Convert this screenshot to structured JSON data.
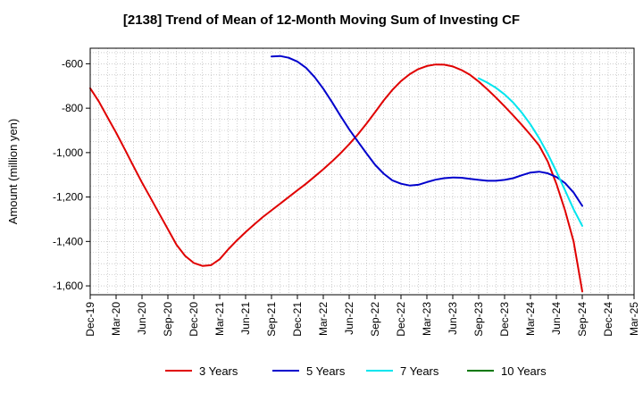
{
  "chart_data": {
    "type": "line",
    "title": "[2138]  Trend of Mean of 12-Month Moving Sum of Investing CF",
    "xlabel": "",
    "ylabel": "Amount (million yen)",
    "ylim": [
      -1640,
      -530
    ],
    "y_ticks": [
      -600,
      -800,
      -1000,
      -1200,
      -1400,
      -1600
    ],
    "y_tick_labels": [
      "-600",
      "-800",
      "-1,000",
      "-1,200",
      "-1,400",
      "-1,600"
    ],
    "x_tick_labels": [
      "Dec-19",
      "Mar-20",
      "Jun-20",
      "Sep-20",
      "Dec-20",
      "Mar-21",
      "Jun-21",
      "Sep-21",
      "Dec-21",
      "Mar-22",
      "Jun-22",
      "Sep-22",
      "Dec-22",
      "Mar-23",
      "Jun-23",
      "Sep-23",
      "Dec-23",
      "Mar-24",
      "Jun-24",
      "Sep-24",
      "Dec-24",
      "Mar-25"
    ],
    "grid": true,
    "legend_position": "bottom",
    "series": [
      {
        "name": "3 Years",
        "color": "#e00000",
        "points": [
          [
            "Dec-19",
            -710
          ],
          [
            "Jan-20",
            -770
          ],
          [
            "Feb-20",
            -840
          ],
          [
            "Mar-20",
            -910
          ],
          [
            "Apr-20",
            -985
          ],
          [
            "May-20",
            -1060
          ],
          [
            "Jun-20",
            -1135
          ],
          [
            "Jul-20",
            -1205
          ],
          [
            "Aug-20",
            -1275
          ],
          [
            "Sep-20",
            -1345
          ],
          [
            "Oct-20",
            -1415
          ],
          [
            "Nov-20",
            -1465
          ],
          [
            "Dec-20",
            -1497
          ],
          [
            "Jan-21",
            -1510
          ],
          [
            "Feb-21",
            -1507
          ],
          [
            "Mar-21",
            -1480
          ],
          [
            "Apr-21",
            -1435
          ],
          [
            "May-21",
            -1395
          ],
          [
            "Jun-21",
            -1358
          ],
          [
            "Jul-21",
            -1323
          ],
          [
            "Aug-21",
            -1290
          ],
          [
            "Sep-21",
            -1260
          ],
          [
            "Oct-21",
            -1230
          ],
          [
            "Nov-21",
            -1200
          ],
          [
            "Dec-21",
            -1170
          ],
          [
            "Jan-22",
            -1140
          ],
          [
            "Feb-22",
            -1108
          ],
          [
            "Mar-22",
            -1075
          ],
          [
            "Apr-22",
            -1040
          ],
          [
            "May-22",
            -1003
          ],
          [
            "Jun-22",
            -962
          ],
          [
            "Jul-22",
            -918
          ],
          [
            "Aug-22",
            -870
          ],
          [
            "Sep-22",
            -818
          ],
          [
            "Oct-22",
            -765
          ],
          [
            "Nov-22",
            -718
          ],
          [
            "Dec-22",
            -678
          ],
          [
            "Jan-23",
            -647
          ],
          [
            "Feb-23",
            -624
          ],
          [
            "Mar-23",
            -610
          ],
          [
            "Apr-23",
            -603
          ],
          [
            "May-23",
            -604
          ],
          [
            "Jun-23",
            -612
          ],
          [
            "Jul-23",
            -628
          ],
          [
            "Aug-23",
            -650
          ],
          [
            "Sep-23",
            -680
          ],
          [
            "Oct-23",
            -715
          ],
          [
            "Nov-23",
            -752
          ],
          [
            "Dec-23",
            -792
          ],
          [
            "Jan-24",
            -833
          ],
          [
            "Feb-24",
            -875
          ],
          [
            "Mar-24",
            -920
          ],
          [
            "Apr-24",
            -968
          ],
          [
            "May-24",
            -1040
          ],
          [
            "Jun-24",
            -1140
          ],
          [
            "Jul-24",
            -1260
          ],
          [
            "Aug-24",
            -1400
          ],
          [
            "Sep-24",
            -1625
          ]
        ]
      },
      {
        "name": "5 Years",
        "color": "#0000cc",
        "points": [
          [
            "Sep-21",
            -567
          ],
          [
            "Oct-21",
            -565
          ],
          [
            "Nov-21",
            -573
          ],
          [
            "Dec-21",
            -590
          ],
          [
            "Jan-22",
            -618
          ],
          [
            "Feb-22",
            -660
          ],
          [
            "Mar-22",
            -712
          ],
          [
            "Apr-22",
            -772
          ],
          [
            "May-22",
            -835
          ],
          [
            "Jun-22",
            -895
          ],
          [
            "Jul-22",
            -950
          ],
          [
            "Aug-22",
            -1003
          ],
          [
            "Sep-22",
            -1055
          ],
          [
            "Oct-22",
            -1095
          ],
          [
            "Nov-22",
            -1125
          ],
          [
            "Dec-22",
            -1140
          ],
          [
            "Jan-23",
            -1148
          ],
          [
            "Feb-23",
            -1145
          ],
          [
            "Mar-23",
            -1133
          ],
          [
            "Apr-23",
            -1122
          ],
          [
            "May-23",
            -1115
          ],
          [
            "Jun-23",
            -1112
          ],
          [
            "Jul-23",
            -1113
          ],
          [
            "Aug-23",
            -1118
          ],
          [
            "Sep-23",
            -1123
          ],
          [
            "Oct-23",
            -1127
          ],
          [
            "Nov-23",
            -1127
          ],
          [
            "Dec-23",
            -1123
          ],
          [
            "Jan-24",
            -1115
          ],
          [
            "Feb-24",
            -1102
          ],
          [
            "Mar-24",
            -1090
          ],
          [
            "Apr-24",
            -1086
          ],
          [
            "May-24",
            -1093
          ],
          [
            "Jun-24",
            -1110
          ],
          [
            "Jul-24",
            -1137
          ],
          [
            "Aug-24",
            -1180
          ],
          [
            "Sep-24",
            -1240
          ]
        ]
      },
      {
        "name": "7 Years",
        "color": "#00e5ee",
        "points": [
          [
            "Sep-23",
            -665
          ],
          [
            "Oct-23",
            -685
          ],
          [
            "Nov-23",
            -708
          ],
          [
            "Dec-23",
            -738
          ],
          [
            "Jan-24",
            -775
          ],
          [
            "Feb-24",
            -820
          ],
          [
            "Mar-24",
            -873
          ],
          [
            "Apr-24",
            -935
          ],
          [
            "May-24",
            -1005
          ],
          [
            "Jun-24",
            -1085
          ],
          [
            "Jul-24",
            -1170
          ],
          [
            "Aug-24",
            -1255
          ],
          [
            "Sep-24",
            -1330
          ]
        ]
      },
      {
        "name": "10 Years",
        "color": "#007700",
        "points": []
      }
    ]
  }
}
